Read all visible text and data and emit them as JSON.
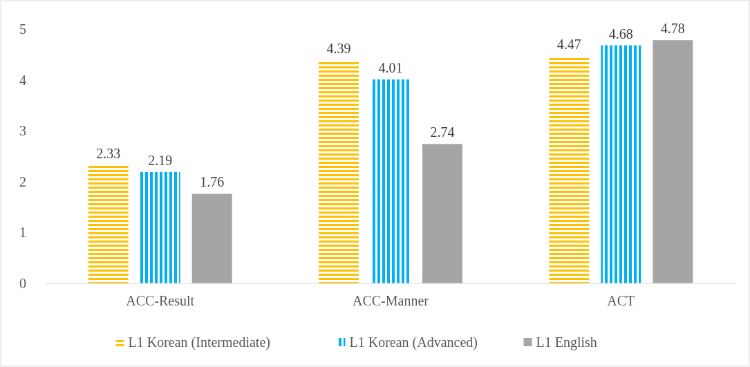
{
  "chart_data": {
    "type": "bar",
    "categories": [
      "ACC-Result",
      "ACC-Manner",
      "ACT"
    ],
    "series": [
      {
        "name": "L1 Korean (Intermediate)",
        "color": "#ffc000",
        "values": [
          2.33,
          4.39,
          4.47
        ]
      },
      {
        "name": "L1 Korean (Advanced)",
        "color": "#00b0f0",
        "values": [
          2.19,
          4.01,
          4.68
        ]
      },
      {
        "name": "L1 English",
        "color": "#a5a5a5",
        "values": [
          1.76,
          2.74,
          4.78
        ]
      }
    ],
    "ylim": [
      0,
      5
    ],
    "yticks": [
      0,
      1,
      2,
      3,
      4,
      5
    ],
    "data_labels": true,
    "legend": "bottom",
    "grid": false
  }
}
